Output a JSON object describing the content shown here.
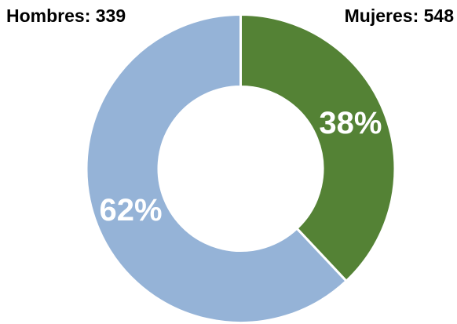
{
  "chart_data": {
    "type": "pie",
    "donut": true,
    "values": [
      38,
      62
    ],
    "value_labels": [
      "38%",
      "62%"
    ],
    "colors": [
      "#548235",
      "#95b3d7"
    ],
    "annotations": [
      "Hombres: 339",
      "Mujeres: 548"
    ]
  }
}
